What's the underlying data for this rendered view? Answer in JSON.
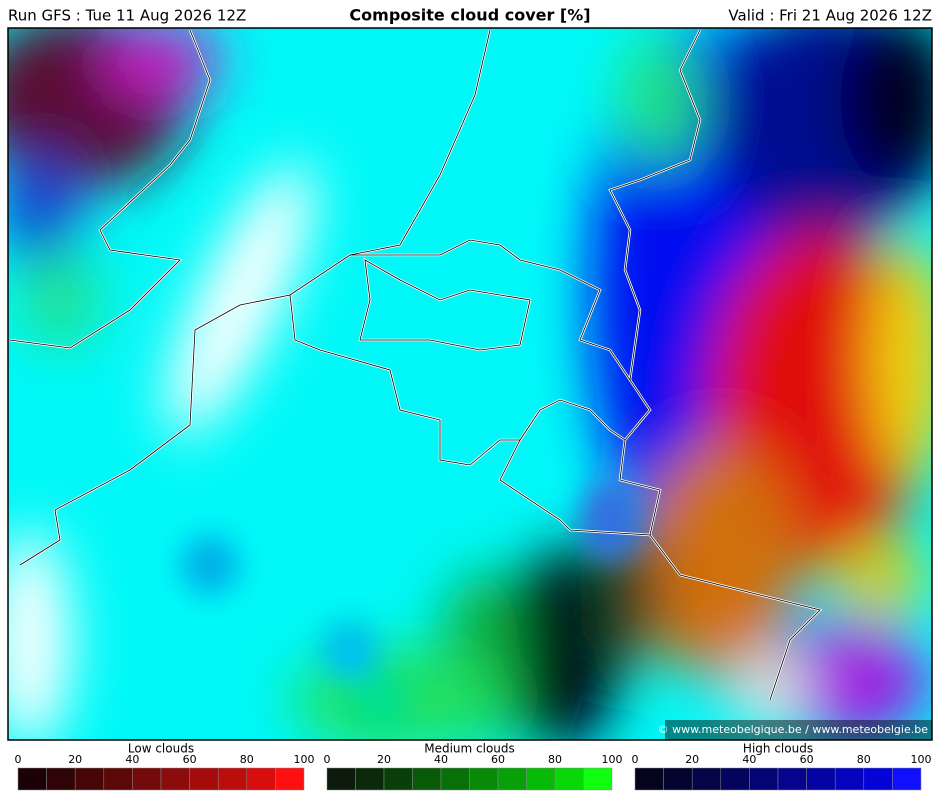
{
  "header": {
    "run": "Run GFS : Tue 11 Aug 2026 12Z",
    "title": "Composite cloud cover [%]",
    "valid": "Valid : Fri 21 Aug 2026 12Z"
  },
  "credit": "© www.meteobelgique.be / www.meteobelgie.be",
  "legends": [
    {
      "title": "Low clouds",
      "ticks": [
        0,
        20,
        40,
        60,
        80,
        100
      ],
      "colors": [
        "#1c0206",
        "#300406",
        "#460607",
        "#5c0808",
        "#740a0a",
        "#8c0b0b",
        "#a40c0c",
        "#bc0d0d",
        "#d80e0e",
        "#ff1010"
      ]
    },
    {
      "title": "Medium clouds",
      "ticks": [
        0,
        20,
        40,
        60,
        80,
        100
      ],
      "colors": [
        "#0c1a0c",
        "#0a2a0a",
        "#084008",
        "#085a08",
        "#087008",
        "#088a08",
        "#08a008",
        "#08ba08",
        "#08d808",
        "#10ff10"
      ]
    },
    {
      "title": "High clouds",
      "ticks": [
        0,
        20,
        40,
        60,
        80,
        100
      ],
      "colors": [
        "#04041c",
        "#040430",
        "#040446",
        "#04045c",
        "#040474",
        "#04048c",
        "#0404a4",
        "#0404bc",
        "#0404d8",
        "#1010ff"
      ]
    }
  ]
}
